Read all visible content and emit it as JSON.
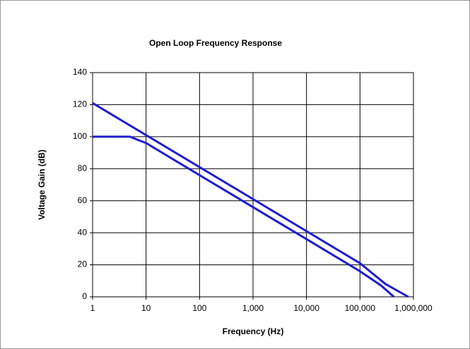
{
  "chart_data": {
    "type": "line",
    "title": "Open Loop Frequency Response",
    "xlabel": "Frequency (Hz)",
    "ylabel": "Voltage Gain (dB)",
    "xscale": "log",
    "grid": true,
    "xlim": [
      1,
      1000000
    ],
    "xticks": [
      1,
      10,
      100,
      {
        "value": 1000,
        "label": "1,000"
      },
      {
        "value": 10000,
        "label": "10,000"
      },
      {
        "value": 100000,
        "label": "100,000"
      },
      {
        "value": 1000000,
        "label": "1,000,000"
      }
    ],
    "ylim": [
      0,
      140
    ],
    "yticks": [
      0,
      20,
      40,
      60,
      80,
      100,
      120,
      140
    ],
    "series": [
      {
        "color": "#1c1cd6",
        "x": [
          1,
          10,
          100,
          1000,
          10000,
          100000,
          300000,
          800000
        ],
        "values": [
          121,
          101,
          81,
          61,
          41,
          21,
          8,
          0
        ]
      },
      {
        "color": "#1c1cd6",
        "x": [
          1,
          5,
          7,
          10,
          100,
          1000,
          10000,
          100000,
          250000,
          430000
        ],
        "values": [
          100,
          100,
          98,
          96,
          76,
          56,
          36,
          16,
          7,
          0
        ]
      }
    ]
  }
}
